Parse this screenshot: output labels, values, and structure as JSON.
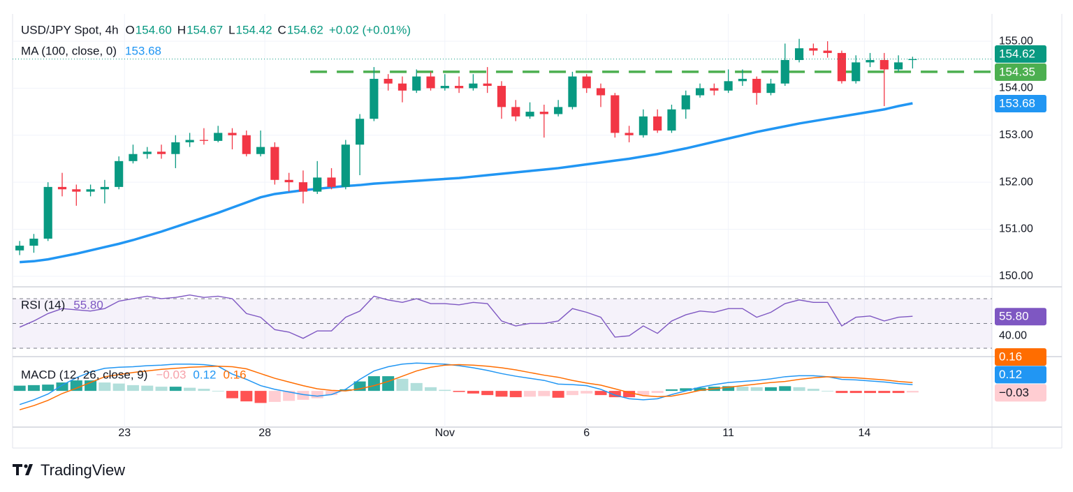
{
  "brand": "TradingView",
  "chart_data": [
    {
      "type": "candlestick",
      "title": "USD/JPY Spot, 4h",
      "ohlc": [
        {
          "key": "O",
          "value": "154.60"
        },
        {
          "key": "H",
          "value": "154.67"
        },
        {
          "key": "L",
          "value": "154.42"
        },
        {
          "key": "C",
          "value": "154.62"
        }
      ],
      "change": "+0.02 (+0.01%)",
      "up_color": "#089981",
      "down_color": "#f23645",
      "open": [
        150.55,
        150.65,
        150.8,
        151.9,
        151.85,
        151.8,
        151.85,
        151.9,
        152.45,
        152.6,
        152.65,
        152.6,
        152.85,
        152.9,
        152.88,
        153.05,
        153.0,
        152.6,
        152.75,
        152.05,
        152.0,
        151.8,
        152.1,
        151.9,
        152.8,
        153.35,
        154.2,
        154.1,
        153.95,
        154.25,
        154.0,
        154.05,
        154.0,
        154.1,
        154.05,
        153.6,
        153.4,
        153.5,
        153.45,
        153.6,
        154.25,
        154.0,
        153.85,
        153.05,
        153.0,
        153.4,
        153.1,
        153.55,
        153.85,
        154.0,
        153.95,
        154.15,
        154.2,
        153.9,
        154.1,
        154.6,
        154.85,
        154.8,
        154.75,
        154.15,
        154.55,
        154.6,
        154.4,
        154.6
      ],
      "high": [
        150.75,
        150.9,
        152.0,
        152.2,
        151.95,
        151.95,
        152.05,
        152.55,
        152.8,
        152.75,
        152.8,
        153.0,
        153.05,
        153.15,
        153.2,
        153.15,
        153.1,
        153.1,
        152.85,
        152.2,
        152.25,
        152.45,
        152.3,
        152.9,
        153.45,
        154.45,
        154.3,
        154.25,
        154.4,
        154.35,
        154.3,
        154.25,
        154.3,
        154.45,
        154.15,
        153.75,
        153.7,
        153.65,
        153.75,
        154.35,
        154.3,
        154.1,
        153.9,
        153.2,
        153.55,
        153.55,
        153.65,
        153.95,
        154.1,
        154.1,
        154.4,
        154.4,
        154.25,
        154.2,
        154.95,
        155.05,
        154.95,
        155.0,
        154.8,
        154.7,
        154.75,
        154.75,
        154.7,
        154.67
      ],
      "low": [
        150.45,
        150.5,
        150.75,
        151.7,
        151.5,
        151.7,
        151.55,
        151.85,
        152.4,
        152.5,
        152.5,
        152.3,
        152.75,
        152.8,
        152.85,
        152.7,
        152.55,
        152.55,
        151.95,
        151.8,
        151.55,
        151.75,
        151.85,
        151.85,
        152.15,
        153.3,
        153.95,
        153.7,
        153.9,
        153.95,
        153.95,
        153.9,
        153.95,
        153.9,
        153.35,
        153.3,
        153.35,
        152.95,
        153.4,
        153.55,
        153.9,
        153.6,
        152.95,
        152.85,
        152.95,
        153.05,
        153.05,
        153.35,
        153.8,
        153.85,
        153.9,
        154.05,
        153.65,
        153.85,
        154.05,
        154.55,
        154.7,
        154.65,
        154.1,
        154.1,
        154.45,
        153.62,
        154.35,
        154.42
      ],
      "close": [
        150.65,
        150.8,
        151.9,
        151.85,
        151.8,
        151.85,
        151.9,
        152.45,
        152.6,
        152.65,
        152.6,
        152.85,
        152.9,
        152.88,
        153.05,
        153.0,
        152.6,
        152.75,
        152.05,
        152.0,
        151.8,
        152.1,
        151.9,
        152.8,
        153.35,
        154.2,
        154.1,
        153.95,
        154.25,
        154.0,
        154.05,
        154.0,
        154.1,
        154.05,
        153.6,
        153.4,
        153.5,
        153.45,
        153.6,
        154.25,
        154.0,
        153.85,
        153.05,
        153.0,
        153.4,
        153.1,
        153.55,
        153.85,
        154.0,
        153.95,
        154.15,
        154.2,
        153.9,
        154.1,
        154.6,
        154.85,
        154.8,
        154.75,
        154.15,
        154.55,
        154.6,
        154.4,
        154.55,
        154.62
      ],
      "ma": {
        "name": "MA (100, close, 0)",
        "color": "#2196f3",
        "values": [
          150.3,
          150.32,
          150.36,
          150.42,
          150.48,
          150.55,
          150.62,
          150.69,
          150.77,
          150.86,
          150.95,
          151.05,
          151.15,
          151.25,
          151.35,
          151.46,
          151.57,
          151.68,
          151.75,
          151.79,
          151.83,
          151.86,
          151.89,
          151.92,
          151.94,
          151.97,
          151.99,
          152.01,
          152.03,
          152.05,
          152.07,
          152.09,
          152.12,
          152.15,
          152.18,
          152.21,
          152.24,
          152.27,
          152.3,
          152.34,
          152.38,
          152.42,
          152.46,
          152.5,
          152.55,
          152.6,
          152.66,
          152.72,
          152.79,
          152.86,
          152.93,
          153.0,
          153.07,
          153.13,
          153.19,
          153.25,
          153.3,
          153.35,
          153.4,
          153.45,
          153.5,
          153.55,
          153.62,
          153.68
        ]
      },
      "resistance": {
        "value": 154.35,
        "x_from": 20.5,
        "color": "#4caf50"
      },
      "xlim": [
        -0.5,
        68.6
      ],
      "xticks": [
        {
          "value": 7.4,
          "label": "23"
        },
        {
          "value": 17.3,
          "label": "28"
        },
        {
          "value": 30,
          "label": "Nov"
        },
        {
          "value": 40,
          "label": "6"
        },
        {
          "value": 50,
          "label": "11"
        },
        {
          "value": 59.6,
          "label": "14"
        }
      ],
      "ylim": [
        149.79,
        155.58
      ],
      "yticks": [
        {
          "value": 150,
          "label": "150.00"
        },
        {
          "value": 151,
          "label": "151.00"
        },
        {
          "value": 152,
          "label": "152.00"
        },
        {
          "value": 153,
          "label": "153.00"
        },
        {
          "value": 154,
          "label": "154.00"
        },
        {
          "value": 155,
          "label": "155.00"
        }
      ],
      "grid": true,
      "badges": [
        {
          "value": 154.62,
          "label": "154.62",
          "color": "#089981",
          "text_color": "#ffffff"
        },
        {
          "value": 154.35,
          "label": "154.35",
          "color": "#4caf50",
          "text_color": "#ffffff"
        },
        {
          "value": 153.68,
          "label": "153.68",
          "color": "#2196f3",
          "text_color": "#ffffff"
        }
      ]
    },
    {
      "type": "line",
      "name": "RSI (14)",
      "color": "#7e57c2",
      "values": [
        47,
        52,
        58,
        62,
        61,
        60,
        62,
        68,
        70,
        72,
        70,
        71,
        73,
        71,
        72,
        70,
        58,
        55,
        45,
        43,
        38,
        44,
        44,
        55,
        60,
        72,
        69,
        67,
        70,
        66,
        66,
        65,
        67,
        66,
        52,
        48,
        50,
        50,
        52,
        62,
        59,
        55,
        39,
        40,
        48,
        42,
        52,
        57,
        60,
        59,
        62,
        62,
        55,
        59,
        66,
        69,
        67,
        67,
        48,
        55,
        56,
        52,
        55,
        55.8
      ],
      "levels": [
        70,
        50,
        30
      ],
      "ylim": [
        23.8,
        79
      ],
      "yticks": [
        {
          "value": 40,
          "label": "40.00"
        }
      ],
      "badges": [
        {
          "value": 55.8,
          "label": "55.80",
          "color": "#7e57c2",
          "text_color": "#ffffff"
        }
      ]
    },
    {
      "type": "macd",
      "name": "MACD (12, 26, close, 9)",
      "histogram": {
        "values": [
          0.1,
          0.11,
          0.12,
          0.16,
          0.2,
          0.2,
          0.16,
          0.14,
          0.11,
          0.1,
          0.08,
          0.08,
          0.06,
          0.04,
          0.0,
          -0.14,
          -0.2,
          -0.23,
          -0.21,
          -0.19,
          -0.17,
          -0.14,
          -0.08,
          0.03,
          0.18,
          0.28,
          0.28,
          0.23,
          0.15,
          0.07,
          0.02,
          -0.02,
          -0.05,
          -0.08,
          -0.11,
          -0.12,
          -0.11,
          -0.1,
          -0.13,
          -0.08,
          -0.05,
          -0.08,
          -0.12,
          -0.12,
          -0.08,
          -0.04,
          0.03,
          0.05,
          0.06,
          0.08,
          0.09,
          0.08,
          0.07,
          0.07,
          0.09,
          0.07,
          0.04,
          0.0,
          -0.04,
          -0.04,
          -0.04,
          -0.04,
          -0.04,
          -0.03
        ],
        "colors": [
          "#26a69a",
          "#b2dfdb",
          "#ff5252",
          "#ffcdd2"
        ]
      },
      "macd": {
        "color": "#2196f3",
        "values": [
          -0.26,
          -0.17,
          -0.06,
          0.11,
          0.25,
          0.36,
          0.43,
          0.45,
          0.46,
          0.48,
          0.49,
          0.51,
          0.51,
          0.5,
          0.47,
          0.32,
          0.22,
          0.1,
          0.03,
          -0.02,
          -0.07,
          -0.1,
          -0.07,
          0.03,
          0.22,
          0.38,
          0.46,
          0.51,
          0.53,
          0.52,
          0.51,
          0.48,
          0.44,
          0.39,
          0.33,
          0.28,
          0.24,
          0.2,
          0.13,
          0.12,
          0.1,
          0.03,
          -0.08,
          -0.15,
          -0.17,
          -0.15,
          -0.07,
          0.0,
          0.07,
          0.12,
          0.16,
          0.18,
          0.2,
          0.23,
          0.27,
          0.29,
          0.29,
          0.27,
          0.22,
          0.21,
          0.19,
          0.17,
          0.14,
          0.12
        ]
      },
      "signal": {
        "color": "#ff6d00",
        "values": [
          -0.36,
          -0.28,
          -0.18,
          -0.05,
          0.05,
          0.16,
          0.27,
          0.31,
          0.35,
          0.38,
          0.41,
          0.43,
          0.45,
          0.46,
          0.47,
          0.46,
          0.42,
          0.33,
          0.24,
          0.17,
          0.1,
          0.04,
          0.01,
          0.0,
          0.04,
          0.1,
          0.18,
          0.28,
          0.38,
          0.45,
          0.49,
          0.5,
          0.49,
          0.47,
          0.44,
          0.4,
          0.35,
          0.3,
          0.26,
          0.2,
          0.15,
          0.11,
          0.04,
          -0.03,
          -0.09,
          -0.11,
          -0.1,
          -0.05,
          0.01,
          0.04,
          0.07,
          0.1,
          0.13,
          0.16,
          0.18,
          0.22,
          0.25,
          0.27,
          0.26,
          0.25,
          0.23,
          0.21,
          0.18,
          0.16
        ]
      },
      "ylim": [
        -0.69,
        0.64
      ],
      "badges": [
        {
          "value": 0.16,
          "label": "0.16",
          "color": "#ff6d00",
          "text_color": "#ffffff"
        },
        {
          "value": 0.12,
          "label": "0.12",
          "color": "#2196f3",
          "text_color": "#ffffff"
        },
        {
          "value": -0.03,
          "label": "−0.03",
          "color": "#ffcdd2",
          "text_color": "#131722"
        }
      ]
    }
  ]
}
